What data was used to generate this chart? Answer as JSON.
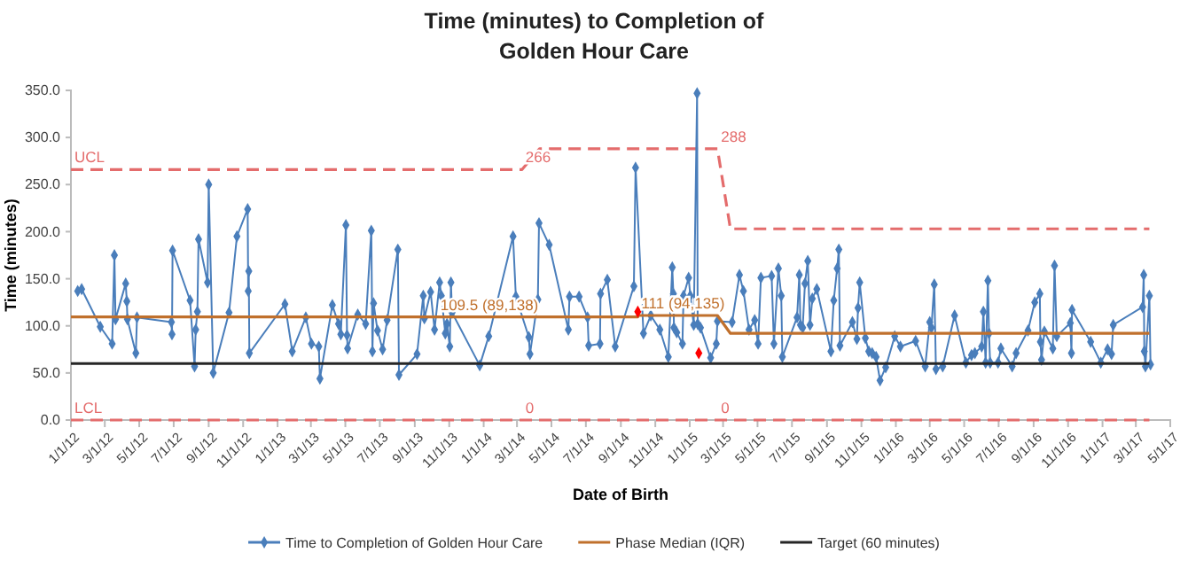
{
  "chart_data": {
    "type": "line",
    "title": "Time (minutes) to Completion of Golden Hour Care",
    "xlabel": "Date of Birth",
    "ylabel": "Time (minutes)",
    "xlim": [
      "2012-01-01",
      "2017-05-01"
    ],
    "xticks": [
      {
        "value": "2012-01-01",
        "label": "1/1/12"
      },
      {
        "value": "2012-03-01",
        "label": "3/1/12"
      },
      {
        "value": "2012-05-01",
        "label": "5/1/12"
      },
      {
        "value": "2012-07-01",
        "label": "7/1/12"
      },
      {
        "value": "2012-09-01",
        "label": "9/1/12"
      },
      {
        "value": "2012-11-01",
        "label": "11/1/12"
      },
      {
        "value": "2013-01-01",
        "label": "1/1/13"
      },
      {
        "value": "2013-03-01",
        "label": "3/1/13"
      },
      {
        "value": "2013-05-01",
        "label": "5/1/13"
      },
      {
        "value": "2013-07-01",
        "label": "7/1/13"
      },
      {
        "value": "2013-09-01",
        "label": "9/1/13"
      },
      {
        "value": "2013-11-01",
        "label": "11/1/13"
      },
      {
        "value": "2014-01-01",
        "label": "1/1/14"
      },
      {
        "value": "2014-03-01",
        "label": "3/1/14"
      },
      {
        "value": "2014-05-01",
        "label": "5/1/14"
      },
      {
        "value": "2014-07-01",
        "label": "7/1/14"
      },
      {
        "value": "2014-09-01",
        "label": "9/1/14"
      },
      {
        "value": "2014-11-01",
        "label": "11/1/14"
      },
      {
        "value": "2015-01-01",
        "label": "1/1/15"
      },
      {
        "value": "2015-03-01",
        "label": "3/1/15"
      },
      {
        "value": "2015-05-01",
        "label": "5/1/15"
      },
      {
        "value": "2015-07-01",
        "label": "7/1/15"
      },
      {
        "value": "2015-09-01",
        "label": "9/1/15"
      },
      {
        "value": "2015-11-01",
        "label": "11/1/15"
      },
      {
        "value": "2016-01-01",
        "label": "1/1/16"
      },
      {
        "value": "2016-03-01",
        "label": "3/1/16"
      },
      {
        "value": "2016-05-01",
        "label": "5/1/16"
      },
      {
        "value": "2016-07-01",
        "label": "7/1/16"
      },
      {
        "value": "2016-09-01",
        "label": "9/1/16"
      },
      {
        "value": "2016-11-01",
        "label": "11/1/16"
      },
      {
        "value": "2017-01-01",
        "label": "1/1/17"
      },
      {
        "value": "2017-03-01",
        "label": "3/1/17"
      },
      {
        "value": "2017-05-01",
        "label": "5/1/17"
      }
    ],
    "ylim": [
      0,
      350
    ],
    "yticks": [
      {
        "value": 0,
        "label": "0.0"
      },
      {
        "value": 50,
        "label": "50.0"
      },
      {
        "value": 100,
        "label": "100.0"
      },
      {
        "value": 150,
        "label": "150.0"
      },
      {
        "value": 200,
        "label": "200.0"
      },
      {
        "value": 250,
        "label": "250.0"
      },
      {
        "value": 300,
        "label": "300.0"
      },
      {
        "value": 350,
        "label": "350.0"
      }
    ],
    "grid": false,
    "legend": "bottom",
    "series": [
      {
        "type": "line",
        "color": "#e46c6c",
        "line_style": "dashed",
        "marker": "none",
        "x": [
          "2012-01-01",
          "2014-03-10",
          "2014-04-10",
          "2015-02-19",
          "2015-03-14",
          "2017-03-25"
        ],
        "values": [
          266,
          266,
          288,
          288,
          203,
          203
        ]
      },
      {
        "type": "line",
        "color": "#e46c6c",
        "line_style": "dashed",
        "marker": "none",
        "x": [
          "2012-01-01",
          "2017-03-25"
        ],
        "values": [
          0,
          0
        ]
      },
      {
        "type": "line",
        "name": "Time to Completion of Golden Hour Care",
        "color": "#4a7ebb",
        "line_style": "solid",
        "marker": "diamond",
        "x": [
          "2012-01-13",
          "2012-01-20",
          "2012-02-22",
          "2012-03-14",
          "2012-03-18",
          "2012-03-20",
          "2012-04-07",
          "2012-04-09",
          "2012-04-10",
          "2012-04-25",
          "2012-04-27",
          "2012-06-27",
          "2012-06-28",
          "2012-06-29",
          "2012-07-30",
          "2012-08-07",
          "2012-08-09",
          "2012-08-12",
          "2012-08-14",
          "2012-08-30",
          "2012-09-01",
          "2012-09-09",
          "2012-10-07",
          "2012-10-21",
          "2012-11-09",
          "2012-11-10",
          "2012-11-11",
          "2012-11-12",
          "2013-01-14",
          "2013-01-27",
          "2013-02-20",
          "2013-03-02",
          "2013-03-15",
          "2013-03-17",
          "2013-04-08",
          "2013-04-19",
          "2013-04-23",
          "2013-05-02",
          "2013-05-04",
          "2013-05-05",
          "2013-05-23",
          "2013-06-06",
          "2013-06-16",
          "2013-06-18",
          "2013-06-20",
          "2013-06-27",
          "2013-07-06",
          "2013-07-14",
          "2013-08-02",
          "2013-08-04",
          "2013-09-05",
          "2013-09-16",
          "2013-09-18",
          "2013-09-29",
          "2013-10-06",
          "2013-10-15",
          "2013-10-18",
          "2013-10-25",
          "2013-10-28",
          "2013-11-02",
          "2013-11-04",
          "2013-11-06",
          "2013-12-25",
          "2014-01-10",
          "2014-02-22",
          "2014-02-27",
          "2014-03-22",
          "2014-03-24",
          "2014-04-07",
          "2014-04-09",
          "2014-04-27",
          "2014-05-31",
          "2014-06-02",
          "2014-06-19",
          "2014-07-04",
          "2014-07-06",
          "2014-07-26",
          "2014-07-27",
          "2014-08-08",
          "2014-08-22",
          "2014-09-24",
          "2014-09-27",
          "2014-10-11",
          "2014-10-24",
          "2014-11-09",
          "2014-11-24",
          "2014-12-01",
          "2014-12-03",
          "2014-12-04",
          "2014-12-09",
          "2014-12-19",
          "2014-12-21",
          "2014-12-30",
          "2015-01-02",
          "2015-01-08",
          "2015-01-14",
          "2015-01-15",
          "2015-01-20",
          "2015-02-07",
          "2015-02-17",
          "2015-02-19",
          "2015-03-17",
          "2015-03-30",
          "2015-04-06",
          "2015-04-16",
          "2015-04-26",
          "2015-05-02",
          "2015-05-07",
          "2015-05-26",
          "2015-05-30",
          "2015-06-07",
          "2015-06-12",
          "2015-06-14",
          "2015-07-10",
          "2015-07-14",
          "2015-07-16",
          "2015-07-20",
          "2015-07-24",
          "2015-07-29",
          "2015-08-02",
          "2015-08-06",
          "2015-08-14",
          "2015-09-08",
          "2015-09-13",
          "2015-09-19",
          "2015-09-22",
          "2015-09-24",
          "2015-10-16",
          "2015-10-24",
          "2015-10-26",
          "2015-10-29",
          "2015-11-08",
          "2015-11-14",
          "2015-11-20",
          "2015-11-27",
          "2015-12-04",
          "2015-12-14",
          "2015-12-30",
          "2016-01-09",
          "2016-02-05",
          "2016-02-22",
          "2016-03-01",
          "2016-03-04",
          "2016-03-09",
          "2016-03-12",
          "2016-03-24",
          "2016-04-14",
          "2016-05-04",
          "2016-05-14",
          "2016-05-20",
          "2016-06-01",
          "2016-06-04",
          "2016-06-08",
          "2016-06-12",
          "2016-06-14",
          "2016-06-16",
          "2016-06-30",
          "2016-07-05",
          "2016-07-25",
          "2016-08-01",
          "2016-08-22",
          "2016-09-03",
          "2016-09-12",
          "2016-09-13",
          "2016-09-15",
          "2016-09-20",
          "2016-10-05",
          "2016-10-08",
          "2016-10-12",
          "2016-11-05",
          "2016-11-07",
          "2016-11-08",
          "2016-12-11",
          "2016-12-29",
          "2017-01-10",
          "2017-01-17",
          "2017-01-20",
          "2017-03-13",
          "2017-03-15",
          "2017-03-16",
          "2017-03-18",
          "2017-03-25",
          "2017-03-27"
        ],
        "values": [
          137,
          139,
          99,
          81,
          175,
          107,
          145,
          126,
          107,
          71,
          109,
          104,
          91,
          180,
          127,
          57,
          96,
          115,
          192,
          146,
          250,
          50,
          114,
          195,
          224,
          137,
          158,
          71,
          123,
          73,
          109,
          81,
          78,
          44,
          122,
          102,
          91,
          207,
          90,
          76,
          112,
          102,
          201,
          73,
          124,
          95,
          75,
          106,
          181,
          48,
          70,
          132,
          108,
          136,
          96,
          146,
          132,
          92,
          102,
          78,
          146,
          114,
          58,
          89,
          195,
          131,
          88,
          70,
          128,
          209,
          186,
          96,
          131,
          131,
          109,
          79,
          81,
          134,
          149,
          78,
          142,
          268,
          92,
          111,
          96,
          67,
          162,
          134,
          98,
          93,
          81,
          132,
          151,
          132,
          101,
          347,
          102,
          98,
          66,
          81,
          105,
          104,
          154,
          137,
          96,
          106,
          81,
          151,
          153,
          81,
          161,
          132,
          67,
          109,
          154,
          101,
          98,
          145,
          169,
          101,
          129,
          139,
          73,
          127,
          161,
          181,
          79,
          104,
          86,
          119,
          146,
          87,
          73,
          71,
          67,
          42,
          56,
          89,
          78,
          84,
          57,
          104,
          98,
          144,
          54,
          57,
          111,
          61,
          69,
          71,
          78,
          115,
          61,
          148,
          92,
          61,
          61,
          76,
          57,
          71,
          95,
          125,
          134,
          83,
          64,
          94,
          76,
          164,
          89,
          103,
          71,
          117,
          83,
          61,
          75,
          70,
          101,
          120,
          154,
          73,
          57,
          132,
          59
        ]
      },
      {
        "type": "line",
        "name": "Phase Median (IQR)",
        "color": "#c0702c",
        "line_style": "solid",
        "marker": "none",
        "x": [
          "2012-01-01",
          "2014-10-01",
          "2014-10-01",
          "2015-02-19",
          "2015-03-14",
          "2017-03-25"
        ],
        "values": [
          109.5,
          109.5,
          111,
          111,
          92,
          92
        ]
      },
      {
        "type": "line",
        "name": "Target (60 minutes)",
        "color": "#262626",
        "line_style": "solid",
        "marker": "none",
        "x": [
          "2012-01-01",
          "2017-03-25"
        ],
        "values": [
          60,
          60
        ]
      },
      {
        "type": "scatter",
        "color": "#ff0000",
        "marker": "diamond",
        "x": [
          "2014-10-01",
          "2015-01-17"
        ],
        "values": [
          115,
          71
        ]
      }
    ],
    "annotations": [
      {
        "text": "UCL",
        "x": "2012-01-01",
        "y": 266
      },
      {
        "text": "LCL",
        "x": "2012-01-01",
        "y": 0
      },
      {
        "text": "266",
        "x": "2014-03-10",
        "y": 266
      },
      {
        "text": "288",
        "x": "2015-02-19",
        "y": 288
      },
      {
        "text": "0",
        "x": "2014-03-10",
        "y": 0
      },
      {
        "text": "0",
        "x": "2015-02-19",
        "y": 0
      },
      {
        "text": "109.5 (89,138)",
        "x": "2013-10-10",
        "y": 109.5
      },
      {
        "text": "111 (94,135)",
        "x": "2014-10-01",
        "y": 111
      }
    ]
  }
}
